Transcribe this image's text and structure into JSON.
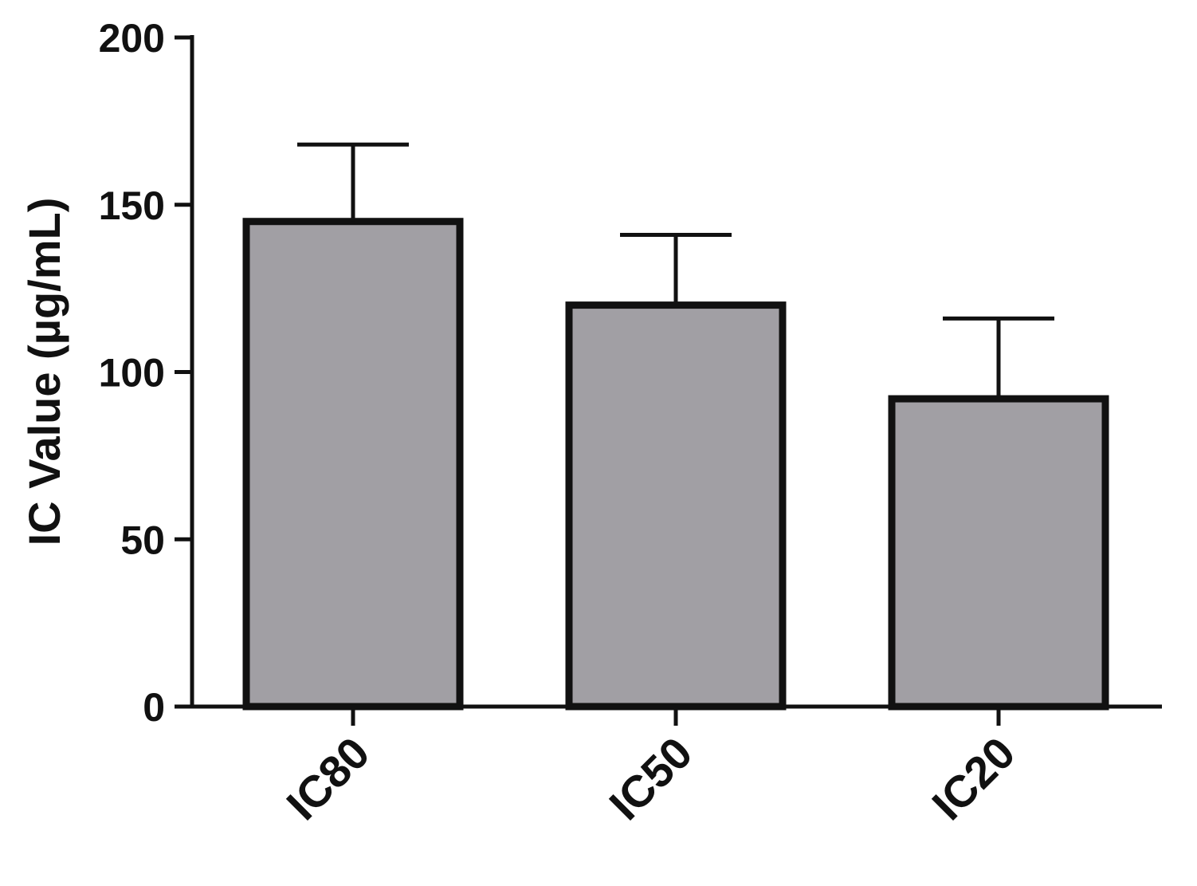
{
  "chart_data": {
    "type": "bar",
    "title": "",
    "xlabel": "",
    "ylabel": "IC Value (µg/mL)",
    "ylim": [
      0,
      200
    ],
    "yticks": [
      0,
      50,
      100,
      150,
      200
    ],
    "categories": [
      "IC80",
      "IC50",
      "IC20"
    ],
    "values": [
      145,
      120,
      92
    ],
    "error_upper": [
      23,
      21,
      24
    ],
    "grid": false,
    "legend": "none",
    "colors": {
      "bar_fill": "#a19fa4",
      "bar_stroke": "#111111",
      "axis": "#111111"
    }
  }
}
